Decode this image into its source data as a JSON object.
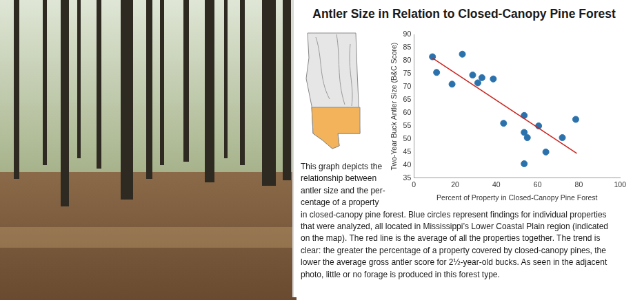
{
  "chart_data": {
    "type": "scatter",
    "title": "Antler Size in Relation to Closed-Canopy Pine Forest",
    "x_label": "Percent of Property in Closed-Canopy Pine Forest",
    "y_label": "Two-Year Buck Antler Size (B&C Score)",
    "x": [
      9,
      11,
      18.5,
      23.5,
      28.5,
      31,
      33,
      38.5,
      43.5,
      53.5,
      53.5,
      53.5,
      55,
      60.5,
      64,
      72,
      78.5
    ],
    "values": [
      81.5,
      75.5,
      71,
      82.5,
      74.5,
      71.5,
      73.5,
      73,
      56,
      59,
      52.5,
      40.5,
      50.5,
      55,
      45,
      50.5,
      57.5
    ],
    "color": "#2b72ad",
    "marker": "circle",
    "trend_line": {
      "x": [
        9,
        79
      ],
      "values": [
        81,
        44.5
      ],
      "color": "#c9231d",
      "line_style": "solid"
    },
    "xlim": [
      0,
      100
    ],
    "xticks": [
      0,
      20,
      40,
      60,
      80,
      100
    ],
    "ylim": [
      35,
      90
    ],
    "yticks": [
      35,
      40,
      45,
      50,
      55,
      60,
      65,
      70,
      75,
      80,
      85,
      90
    ],
    "grid": false
  },
  "caption": {
    "lines": [
      "This graph depicts the",
      "relationship between",
      "antler size and the per-",
      "centage of a property",
      "in closed-canopy pine forest. Blue circles represent findings for individual properties",
      "that were analyzed, all located in Mississippi’s Lower Coastal Plain region (indicated",
      "on the map). The red line is the average of all the properties together. The trend is",
      "clear: the greater the percentage of a property covered by closed-canopy pines, the",
      "lower the average gross antler score for 2½-year-old bucks. As seen in the adjacent",
      "photo, little or no forage is produced in this forest type."
    ]
  }
}
